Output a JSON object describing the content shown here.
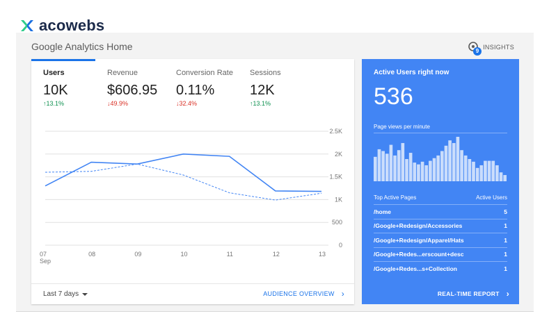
{
  "brand": {
    "name": "acowebs",
    "colors": {
      "logo_green": "#2ecc8a",
      "logo_blue": "#1a6fe0",
      "text": "#1b2a4a"
    }
  },
  "header": {
    "title": "Google Analytics Home",
    "insights_label": "INSIGHTS",
    "insights_badge": "9"
  },
  "metrics": [
    {
      "label": "Users",
      "value": "10K",
      "change": "13.1%",
      "direction": "up"
    },
    {
      "label": "Revenue",
      "value": "$606.95",
      "change": "49.9%",
      "direction": "down"
    },
    {
      "label": "Conversion Rate",
      "value": "0.11%",
      "change": "32.4%",
      "direction": "down"
    },
    {
      "label": "Sessions",
      "value": "12K",
      "change": "13.1%",
      "direction": "up"
    }
  ],
  "chart_data": {
    "type": "line",
    "x": [
      "07",
      "08",
      "09",
      "10",
      "11",
      "12",
      "13"
    ],
    "x_sub": "Sep",
    "series": [
      {
        "values": [
          1300,
          1820,
          1780,
          2000,
          1950,
          1190,
          1180
        ],
        "style": "solid"
      },
      {
        "values": [
          1600,
          1620,
          1780,
          1540,
          1150,
          990,
          1140
        ],
        "style": "dashed"
      }
    ],
    "yticks": [
      "2.5K",
      "2K",
      "1.5K",
      "1K",
      "500",
      "0"
    ],
    "ytick_values": [
      2500,
      2000,
      1500,
      1000,
      500,
      0
    ],
    "ylim": [
      0,
      2500
    ],
    "grid": true
  },
  "footer": {
    "range": "Last 7 days",
    "link": "AUDIENCE OVERVIEW"
  },
  "realtime": {
    "title": "Active Users right now",
    "count": "536",
    "pageviews_label": "Page views per minute",
    "bars": [
      0.55,
      0.72,
      0.68,
      0.62,
      0.82,
      0.58,
      0.7,
      0.86,
      0.5,
      0.64,
      0.42,
      0.38,
      0.44,
      0.36,
      0.46,
      0.52,
      0.58,
      0.68,
      0.8,
      0.92,
      0.86,
      1.0,
      0.7,
      0.58,
      0.5,
      0.44,
      0.3,
      0.36,
      0.46,
      0.46,
      0.46,
      0.36,
      0.2,
      0.14
    ],
    "top_pages_label": "Top Active Pages",
    "active_users_label": "Active Users",
    "pages": [
      {
        "path": "/home",
        "users": "5"
      },
      {
        "path": "/Google+Redesign/Accessories",
        "users": "1"
      },
      {
        "path": "/Google+Redesign/Apparel/Hats",
        "users": "1"
      },
      {
        "path": "/Google+Redes...erscount+desc",
        "users": "1"
      },
      {
        "path": "/Google+Redes...s+Collection",
        "users": "1"
      }
    ],
    "report_link": "REAL-TIME REPORT"
  }
}
